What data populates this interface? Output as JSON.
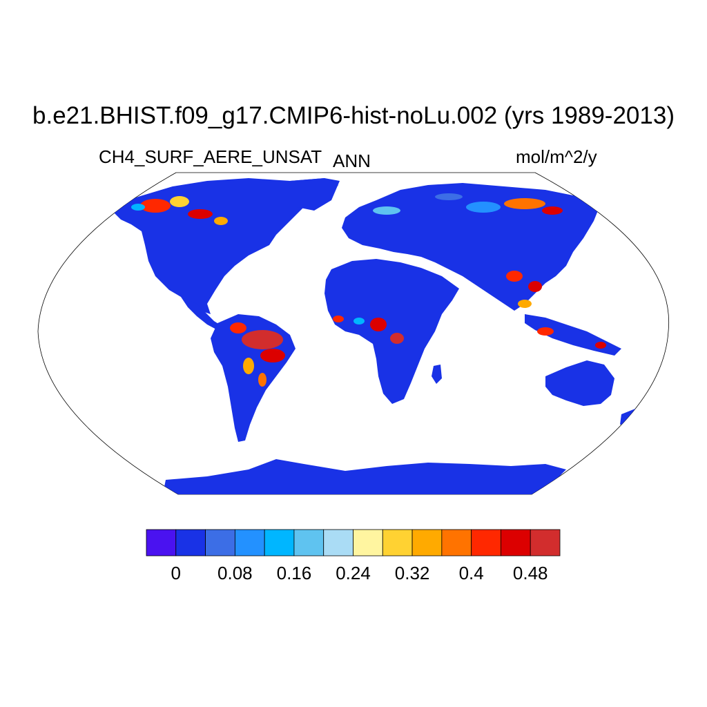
{
  "title": "b.e21.BHIST.f09_g17.CMIP6-hist-noLu.002 (yrs 1989-2013)",
  "subtitle_left": "CH4_SURF_AERE_UNSAT",
  "subtitle_center": "ANN",
  "subtitle_right": "mol/m^2/y",
  "projection": "robinson",
  "colorbar": {
    "colors": [
      "#4a12f0",
      "#1932e6",
      "#3c6ee6",
      "#2391ff",
      "#00b6ff",
      "#5fc3f0",
      "#aadcf5",
      "#fff5a0",
      "#ffd232",
      "#ffaa00",
      "#ff7300",
      "#ff2800",
      "#dc0000",
      "#d22d2d"
    ],
    "tick_labels": [
      "0",
      "0.08",
      "0.16",
      "0.24",
      "0.32",
      "0.4",
      "0.48"
    ]
  }
}
